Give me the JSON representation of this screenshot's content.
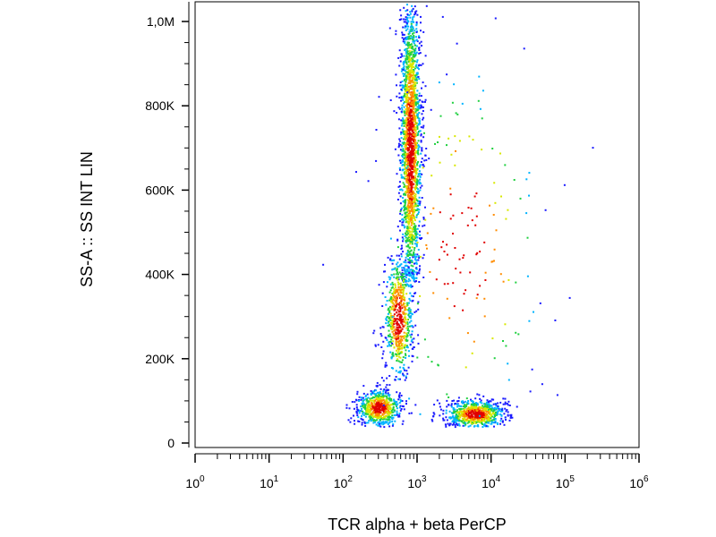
{
  "chart_data": {
    "type": "scatter",
    "title": "",
    "xlabel": "TCR alpha + beta PerCP",
    "ylabel": "SS-A :: SS INT LIN",
    "x_scale": "log",
    "y_scale": "linear",
    "xlim": [
      1,
      1000000
    ],
    "ylim": [
      0,
      1050000
    ],
    "x_ticks": [
      {
        "base": "10",
        "exp": "0",
        "value": 1
      },
      {
        "base": "10",
        "exp": "1",
        "value": 10
      },
      {
        "base": "10",
        "exp": "2",
        "value": 100
      },
      {
        "base": "10",
        "exp": "3",
        "value": 1000
      },
      {
        "base": "10",
        "exp": "4",
        "value": 10000
      },
      {
        "base": "10",
        "exp": "5",
        "value": 100000
      },
      {
        "base": "10",
        "exp": "6",
        "value": 1000000
      }
    ],
    "y_ticks": [
      {
        "label": "0",
        "value": 0
      },
      {
        "label": "200K",
        "value": 200000
      },
      {
        "label": "400K",
        "value": 400000
      },
      {
        "label": "600K",
        "value": 600000
      },
      {
        "label": "800K",
        "value": 800000
      },
      {
        "label": "1,0M",
        "value": 1000000
      }
    ],
    "grid": false,
    "density_colormap": [
      "#1a1aff",
      "#00b4ff",
      "#20d040",
      "#d8e800",
      "#ff8c00",
      "#e00000"
    ],
    "populations": [
      {
        "x_center": 800,
        "y_center": 700000,
        "x_spread_decades": 0.07,
        "y_spread": 190000,
        "y_min": 380000,
        "y_max": 1050000,
        "points": 2200
      },
      {
        "x_center": 550,
        "y_center": 300000,
        "x_spread_decades": 0.1,
        "y_spread": 80000,
        "y_min": 150000,
        "y_max": 450000,
        "points": 700
      },
      {
        "x_center": 300,
        "y_center": 85000,
        "x_spread_decades": 0.15,
        "y_spread": 22000,
        "y_min": 40000,
        "y_max": 160000,
        "points": 650
      },
      {
        "x_center": 6000,
        "y_center": 70000,
        "x_spread_decades": 0.2,
        "y_spread": 17000,
        "y_min": 40000,
        "y_max": 130000,
        "points": 750
      },
      {
        "x_center": 4000,
        "y_center": 450000,
        "x_spread_decades": 0.6,
        "y_spread": 250000,
        "y_min": 50000,
        "y_max": 1050000,
        "points": 200
      }
    ]
  }
}
